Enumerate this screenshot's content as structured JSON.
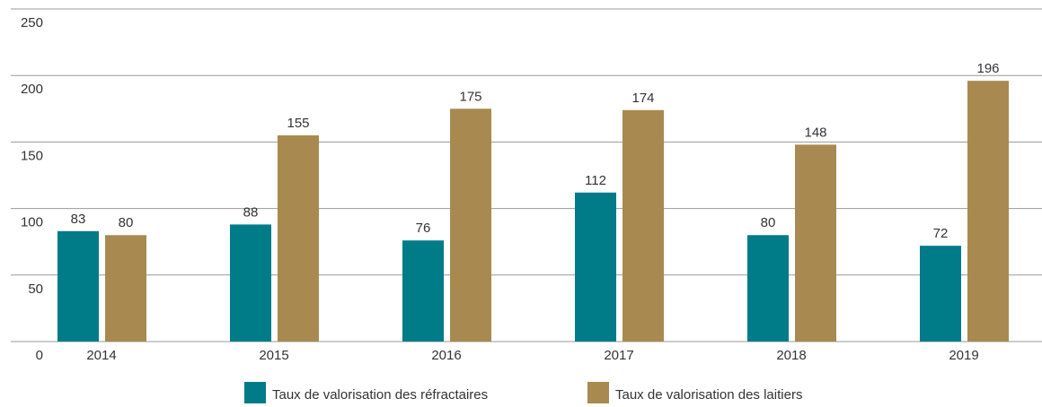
{
  "chart_data": {
    "type": "bar",
    "categories": [
      "2014",
      "2015",
      "2016",
      "2017",
      "2018",
      "2019"
    ],
    "series": [
      {
        "name": "Taux de valorisation des réfractaires",
        "color": "#007b88",
        "values": [
          83,
          88,
          76,
          112,
          80,
          72
        ]
      },
      {
        "name": "Taux de valorisation des laitiers",
        "color": "#a88a50",
        "values": [
          80,
          155,
          175,
          174,
          148,
          196
        ]
      }
    ],
    "ylim": [
      0,
      250
    ],
    "yticks": [
      0,
      50,
      100,
      150,
      200,
      250
    ],
    "grid": true,
    "legend": "bottom"
  }
}
